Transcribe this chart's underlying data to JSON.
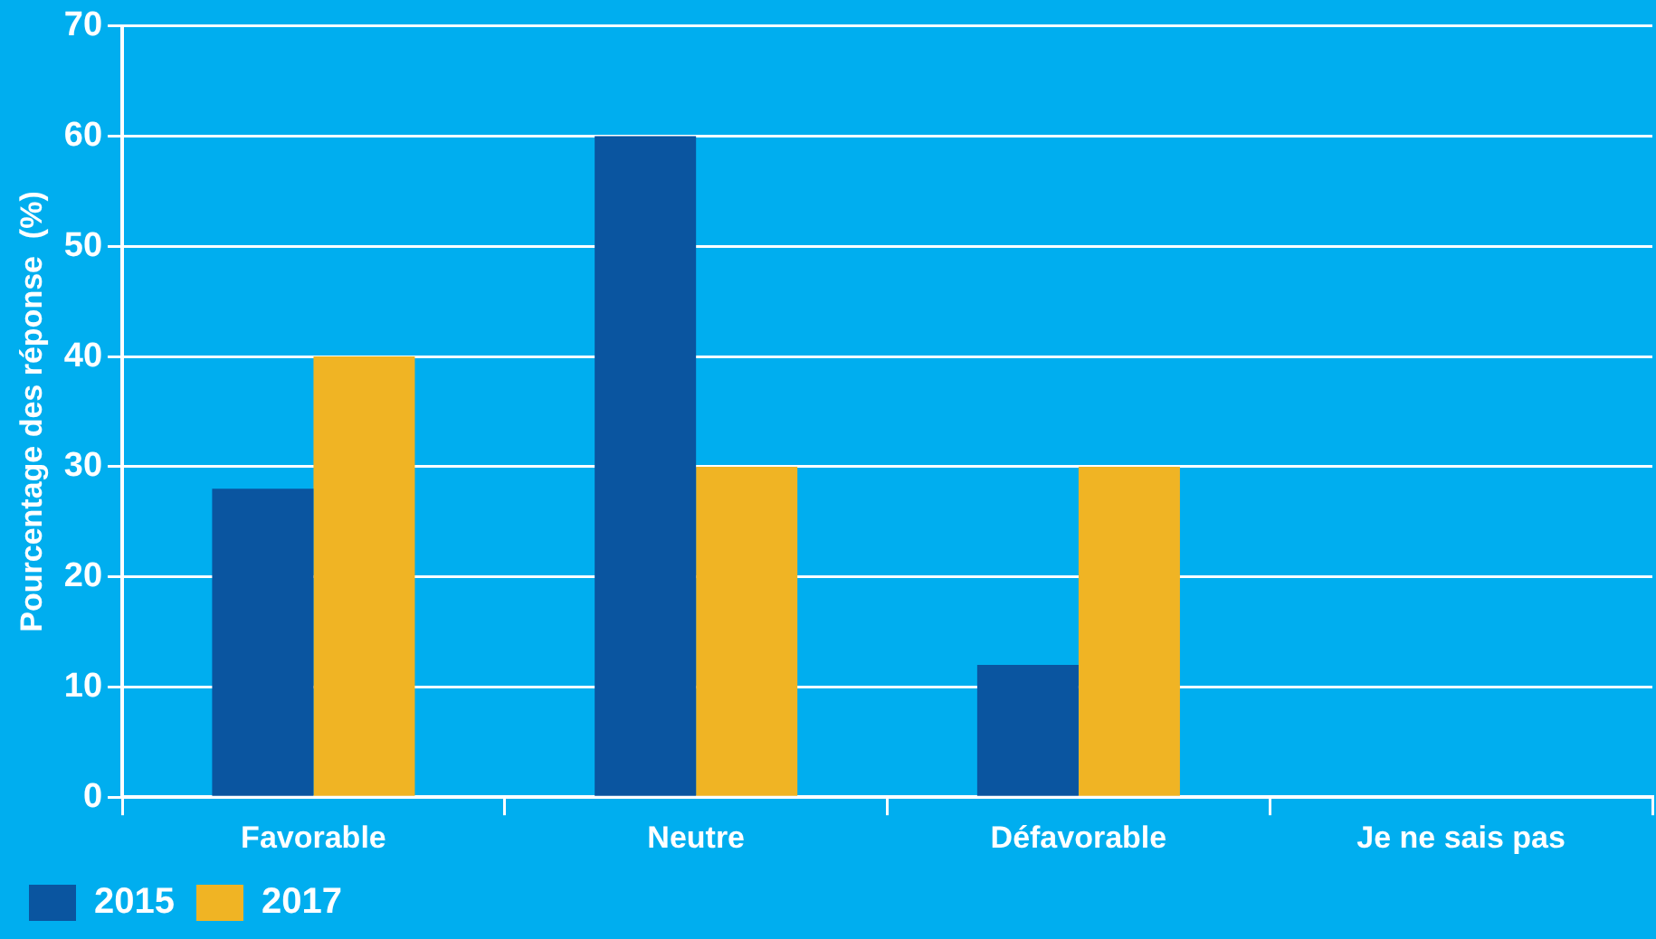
{
  "chart_data": {
    "type": "bar",
    "ylabel": "Pourcentage des réponse  (%)",
    "categories": [
      "Favorable",
      "Neutre",
      "Défavorable",
      "Je ne sais pas"
    ],
    "series": [
      {
        "name": "2015",
        "color": "#0a55a0",
        "values": [
          28,
          60,
          12,
          0
        ]
      },
      {
        "name": "2017",
        "color": "#f0b424",
        "values": [
          40,
          30,
          30,
          0
        ]
      }
    ],
    "ylim": [
      0,
      70
    ],
    "yticks": [
      0,
      10,
      20,
      30,
      40,
      50,
      60,
      70
    ],
    "grid": "y",
    "legend": "bottom left"
  }
}
